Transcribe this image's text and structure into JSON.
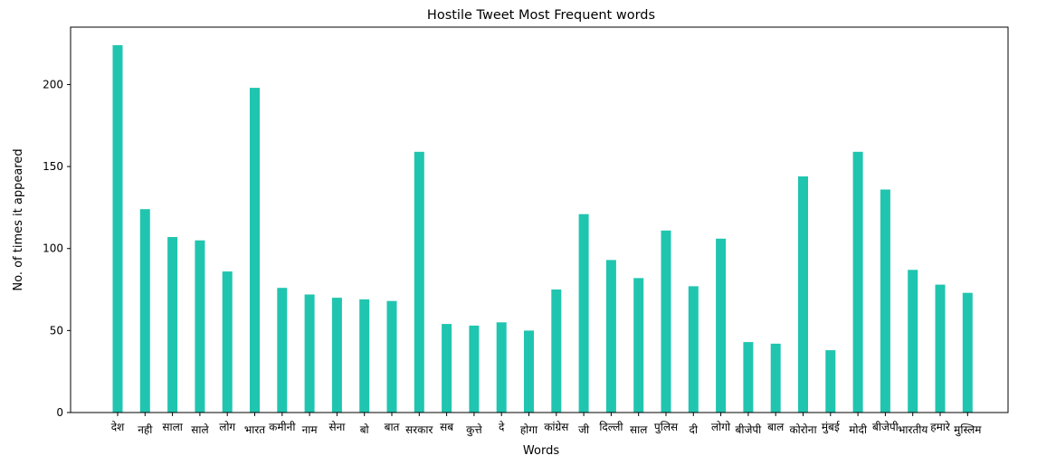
{
  "chart_data": {
    "type": "bar",
    "title": "Hostile Tweet Most Frequent words",
    "xlabel": "Words",
    "ylabel": "No. of times it appeared",
    "ylim": [
      0,
      235
    ],
    "yticks": [
      0,
      50,
      100,
      150,
      200
    ],
    "grid": false,
    "bar_color": "#20c5b0",
    "categories": [
      "देश",
      "नही",
      "साला",
      "साले",
      "लोग",
      "भारत",
      "कमीनी",
      "नाम",
      "सेना",
      "बो",
      "बात",
      "सरकार",
      "सब",
      "कुत्ते",
      "दे",
      "होगा",
      "कांग्रेस",
      "जी",
      "दिल्ली",
      "साल",
      "पुलिस",
      "दी",
      "लोगो",
      "बीजेपी",
      "बाल",
      "कोरोना",
      "मुंबई",
      "मोदी",
      "बीजेपी",
      "भारतीय",
      "हमारे",
      "मुस्लिम"
    ],
    "values": [
      224,
      124,
      107,
      105,
      86,
      198,
      76,
      72,
      70,
      69,
      68,
      159,
      54,
      53,
      55,
      50,
      75,
      121,
      93,
      82,
      111,
      77,
      106,
      43,
      42,
      144,
      38,
      159,
      136,
      87,
      78,
      73
    ]
  }
}
